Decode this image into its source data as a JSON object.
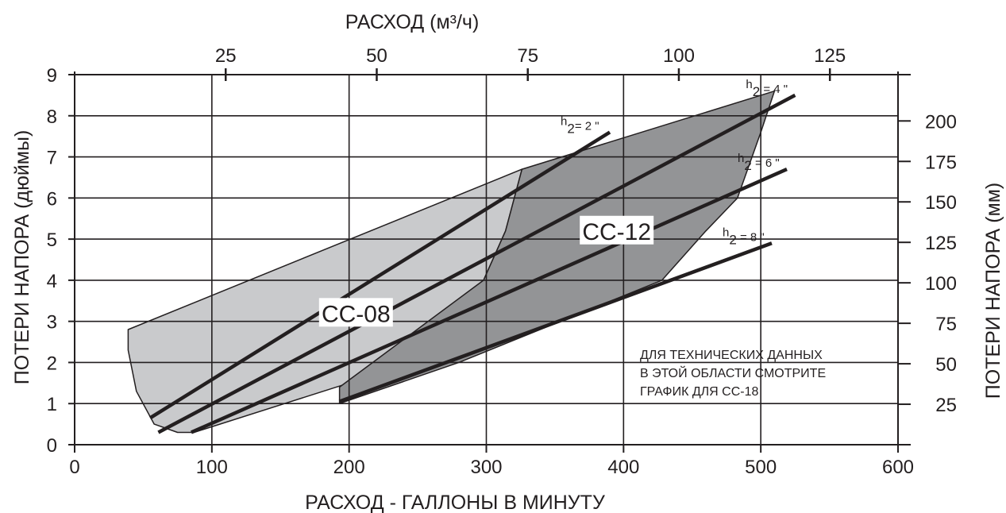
{
  "chart_data": {
    "type": "line",
    "title": "",
    "xlabel": "РАСХОД - ГАЛЛОНЫ В МИНУТУ",
    "xlabel_top": "РАСХОД (м³/ч)",
    "ylabel": "ПОТЕРИ НАПОРА (дюймы)",
    "ylabel_right": "ПОТЕРИ НАПОРА (мм)",
    "xlim": [
      0,
      600
    ],
    "ylim": [
      0,
      9
    ],
    "x_ticks": [
      "0",
      "100",
      "200",
      "300",
      "400",
      "500",
      "600"
    ],
    "y_ticks": [
      "0",
      "1",
      "2",
      "3",
      "4",
      "5",
      "6",
      "7",
      "8",
      "9"
    ],
    "top_ticks": [
      {
        "label": "25",
        "value": 25
      },
      {
        "label": "50",
        "value": 50
      },
      {
        "label": "75",
        "value": 75
      },
      {
        "label": "100",
        "value": 100
      },
      {
        "label": "125",
        "value": 125
      }
    ],
    "right_ticks": [
      {
        "label": "25",
        "value": 25
      },
      {
        "label": "50",
        "value": 50
      },
      {
        "label": "75",
        "value": 75
      },
      {
        "label": "100",
        "value": 100
      },
      {
        "label": "125",
        "value": 125
      },
      {
        "label": "150",
        "value": 150
      },
      {
        "label": "175",
        "value": 175
      },
      {
        "label": "200",
        "value": 200
      }
    ],
    "grid": true,
    "regions": [
      {
        "name": "CC-08",
        "color": "#c9cacc",
        "label_at": [
          205,
          3.2
        ],
        "polygon": [
          [
            39,
            2.8
          ],
          [
            326,
            6.7
          ],
          [
            314,
            5.2
          ],
          [
            298,
            4.0
          ],
          [
            270,
            3.2
          ],
          [
            240,
            2.55
          ],
          [
            200,
            1.5
          ],
          [
            87,
            0.3
          ],
          [
            75,
            0.3
          ],
          [
            58,
            0.5
          ],
          [
            45,
            1.3
          ],
          [
            39,
            2.3
          ]
        ]
      },
      {
        "name": "CC-12",
        "color": "#939496",
        "label_at": [
          395,
          5.2
        ],
        "polygon": [
          [
            326,
            6.7
          ],
          [
            510,
            8.6
          ],
          [
            500,
            7.6
          ],
          [
            483,
            6.0
          ],
          [
            460,
            5.2
          ],
          [
            428,
            4.0
          ],
          [
            280,
            2.0
          ],
          [
            193,
            1.0
          ],
          [
            193,
            1.4
          ],
          [
            298,
            4.0
          ],
          [
            314,
            5.2
          ]
        ]
      }
    ],
    "series": [
      {
        "name": "h2= 2 \"",
        "points": [
          [
            55,
            0.65
          ],
          [
            390,
            7.6
          ]
        ]
      },
      {
        "name": "h2 = 4 \"",
        "points": [
          [
            61,
            0.3
          ],
          [
            525,
            8.5
          ]
        ]
      },
      {
        "name": "h2 = 6 \"",
        "points": [
          [
            85,
            0.3
          ],
          [
            519,
            6.7
          ]
        ]
      },
      {
        "name": "h2 = 8 \"",
        "points": [
          [
            193,
            1.05
          ],
          [
            508,
            4.9
          ]
        ]
      }
    ],
    "annotation": [
      "ДЛЯ ТЕХНИЧЕСКИХ ДАННЫХ",
      "В ЭТОЙ ОБЛАСТИ СМОТРИТЕ",
      "ГРАФИК ДЛЯ CC-18"
    ]
  }
}
